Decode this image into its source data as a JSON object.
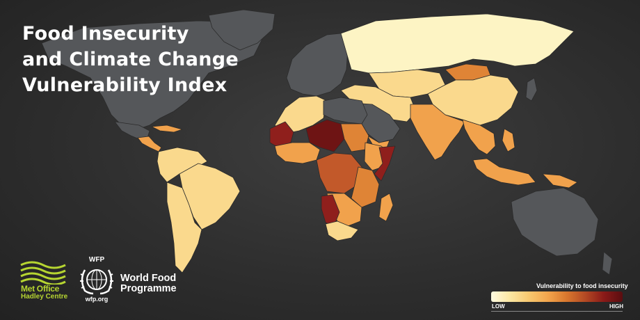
{
  "title": {
    "line1": "Food Insecurity",
    "line2": "and Climate Change",
    "line3": "Vulnerability Index"
  },
  "logos": {
    "met_office": {
      "line1": "Met Office",
      "line2": "Hadley Centre",
      "color": "#b6d531"
    },
    "wfp": {
      "abbreviation": "WFP",
      "name_line1": "World Food",
      "name_line2": "Programme",
      "url": "wfp.org"
    }
  },
  "legend": {
    "title": "Vulnerability to food insecurity",
    "low_label": "LOW",
    "high_label": "HIGH",
    "colors": [
      "#fffbe0",
      "#fbe7a3",
      "#f7c870",
      "#f3a64d",
      "#d9782e",
      "#b44a24",
      "#8a1a18",
      "#5a0d10"
    ]
  },
  "map_colors": {
    "ocean": "#353535",
    "not_assessed": "#55575a",
    "very_low": "#fdf4c4",
    "low": "#fad98d",
    "medium_low": "#f7be6a",
    "medium": "#f1a24c",
    "medium_high": "#df8436",
    "high": "#c2592a",
    "very_high": "#8f1f1c",
    "extreme": "#6e1414"
  },
  "regions": [
    {
      "name": "north-america",
      "level": "not_assessed"
    },
    {
      "name": "greenland",
      "level": "not_assessed"
    },
    {
      "name": "mexico",
      "level": "not_assessed"
    },
    {
      "name": "central-america",
      "level": "medium"
    },
    {
      "name": "caribbean",
      "level": "medium"
    },
    {
      "name": "south-america-north",
      "level": "low"
    },
    {
      "name": "brazil",
      "level": "low"
    },
    {
      "name": "southern-cone",
      "level": "low"
    },
    {
      "name": "europe",
      "level": "not_assessed"
    },
    {
      "name": "russia",
      "level": "very_low"
    },
    {
      "name": "central-asia",
      "level": "low"
    },
    {
      "name": "mongolia",
      "level": "medium_high"
    },
    {
      "name": "china",
      "level": "low"
    },
    {
      "name": "middle-east",
      "level": "low"
    },
    {
      "name": "arabia",
      "level": "not_assessed"
    },
    {
      "name": "yemen",
      "level": "medium"
    },
    {
      "name": "south-asia",
      "level": "medium"
    },
    {
      "name": "southeast-asia",
      "level": "medium"
    },
    {
      "name": "indonesia",
      "level": "medium"
    },
    {
      "name": "philippines",
      "level": "medium"
    },
    {
      "name": "north-africa",
      "level": "low"
    },
    {
      "name": "libya-egypt",
      "level": "not_assessed"
    },
    {
      "name": "sahel-west",
      "level": "very_high"
    },
    {
      "name": "chad-niger",
      "level": "extreme"
    },
    {
      "name": "west-africa",
      "level": "medium"
    },
    {
      "name": "sudan",
      "level": "medium_high"
    },
    {
      "name": "horn-of-africa",
      "level": "medium"
    },
    {
      "name": "somalia",
      "level": "very_high"
    },
    {
      "name": "central-africa",
      "level": "high"
    },
    {
      "name": "east-africa",
      "level": "medium_high"
    },
    {
      "name": "southern-africa",
      "level": "medium"
    },
    {
      "name": "namibia",
      "level": "very_high"
    },
    {
      "name": "south-africa",
      "level": "low"
    },
    {
      "name": "madagascar",
      "level": "medium"
    },
    {
      "name": "papua-new-guinea",
      "level": "medium"
    },
    {
      "name": "australia",
      "level": "not_assessed"
    },
    {
      "name": "new-zealand",
      "level": "not_assessed"
    },
    {
      "name": "japan",
      "level": "not_assessed"
    }
  ]
}
